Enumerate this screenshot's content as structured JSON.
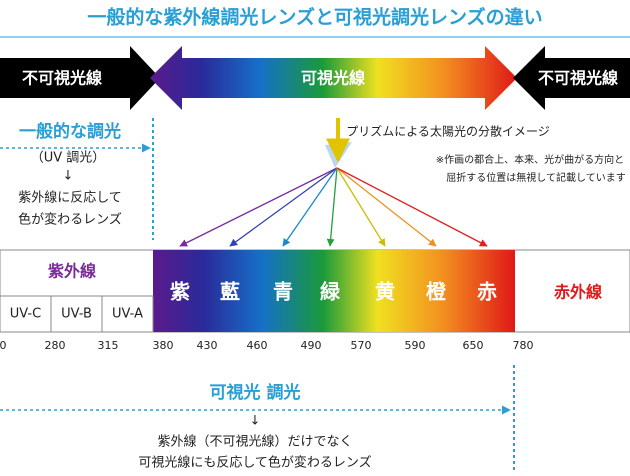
{
  "header": {
    "title": "一般的な紫外線調光レンズと可視光調光レンズの違い"
  },
  "arrows": {
    "left": "不可視光線",
    "center": "可視光線",
    "right": "不可視光線"
  },
  "uv_lens": {
    "title": "一般的な調光",
    "subtitle": "（UV 調光）",
    "arrow": "↓",
    "lines": [
      "紫外線に反応して",
      "色が変わるレンズ"
    ]
  },
  "prism": {
    "caption": "プリズムによる太陽光の分散イメージ",
    "notes": [
      "※作画の都合上、本来、光が曲がる方向と",
      "屈折する位置は無視して記載しています"
    ]
  },
  "spectrum": {
    "uv_label": "紫外線",
    "uv_bands": [
      "UV-C",
      "UV-B",
      "UV-A"
    ],
    "colors": [
      "紫",
      "藍",
      "青",
      "緑",
      "黄",
      "橙",
      "赤"
    ],
    "ir_label": "赤外線",
    "wavelengths": [
      "0",
      "280",
      "315",
      "380",
      "430",
      "460",
      "490",
      "570",
      "590",
      "650",
      "780"
    ]
  },
  "visible_lens": {
    "title": "可視光 調光",
    "arrow": "↓",
    "lines": [
      "紫外線（不可視光線）だけでなく",
      "可視光線にも反応して色が変わるレンズ"
    ]
  }
}
